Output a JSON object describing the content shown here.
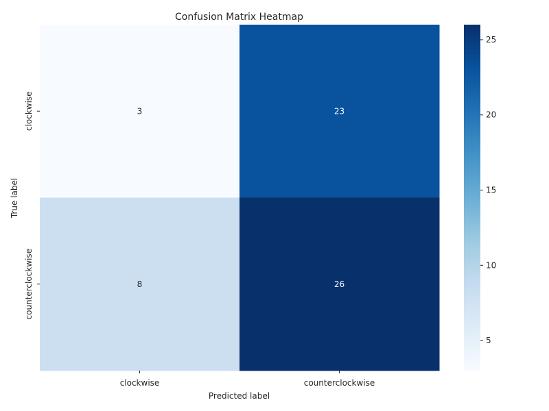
{
  "chart_data": {
    "type": "heatmap",
    "title": "Confusion Matrix Heatmap",
    "xlabel": "Predicted label",
    "ylabel": "True label",
    "x_categories": [
      "clockwise",
      "counterclockwise"
    ],
    "y_categories": [
      "clockwise",
      "counterclockwise"
    ],
    "values": [
      [
        3,
        23
      ],
      [
        8,
        26
      ]
    ],
    "colormap": "Blues",
    "colorbar": {
      "min": 3,
      "max": 26,
      "ticks": [
        "5",
        "10",
        "15",
        "20",
        "25"
      ]
    }
  }
}
